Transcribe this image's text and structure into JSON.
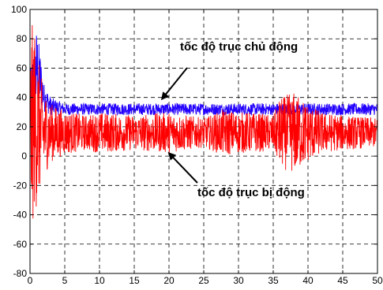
{
  "chart_data": {
    "type": "line",
    "title": "",
    "xlabel": "",
    "ylabel": "",
    "xlim": [
      0,
      50
    ],
    "ylim": [
      -80,
      100
    ],
    "x_ticks": [
      0,
      5,
      10,
      15,
      20,
      25,
      30,
      35,
      40,
      45,
      50
    ],
    "y_ticks": [
      -80,
      -60,
      -40,
      -20,
      0,
      20,
      40,
      60,
      80,
      100
    ],
    "grid": true,
    "grid_style": "dashed",
    "series": [
      {
        "color": "#2200ff",
        "x": [
          0,
          0.5,
          1,
          1.5,
          2,
          3,
          5,
          8,
          10,
          15,
          20,
          25,
          30,
          35,
          40,
          45,
          50
        ],
        "y_center": [
          30,
          45,
          60,
          52,
          40,
          34,
          32,
          32,
          32,
          32,
          32,
          32,
          32,
          32,
          32,
          32,
          32
        ],
        "y_band": [
          25,
          35,
          28,
          18,
          10,
          6,
          4,
          4,
          4,
          4,
          4,
          4,
          4,
          4,
          4,
          4,
          4
        ]
      },
      {
        "color": "#ff0000",
        "x": [
          0,
          0.3,
          0.6,
          1,
          1.5,
          2,
          3,
          5,
          8,
          10,
          15,
          20,
          25,
          28,
          30,
          32,
          35,
          36,
          38,
          40,
          42,
          45,
          50
        ],
        "y_center": [
          15,
          20,
          25,
          20,
          17,
          16,
          16,
          16,
          16,
          16,
          16,
          16,
          16,
          16,
          16,
          16,
          16,
          16,
          16,
          16,
          16,
          16,
          16
        ],
        "y_band": [
          60,
          70,
          65,
          55,
          40,
          30,
          20,
          15,
          12,
          14,
          12,
          14,
          10,
          16,
          14,
          14,
          12,
          24,
          28,
          20,
          14,
          12,
          10
        ]
      }
    ],
    "annotations": [
      {
        "text": "tốc độ trục chủ động",
        "target_x": 19,
        "target_y": 39
      },
      {
        "text": "tốc độ trục bị động",
        "target_x": 20,
        "target_y": 2
      }
    ]
  }
}
